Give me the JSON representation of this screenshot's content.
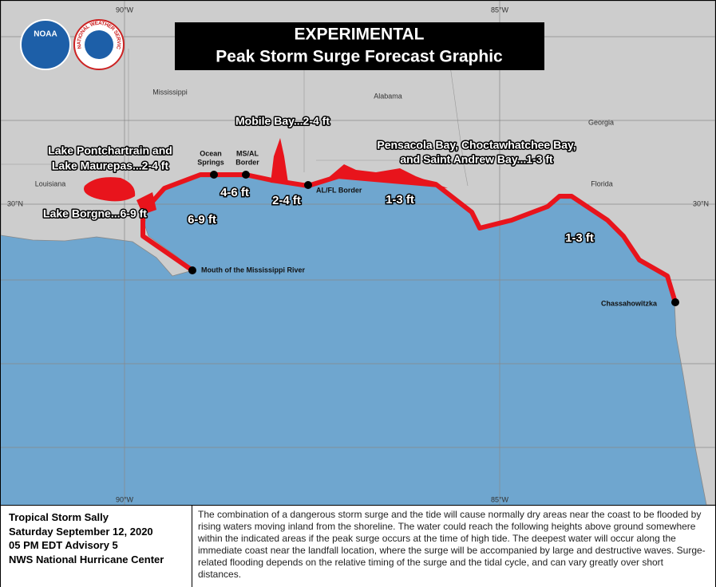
{
  "header": {
    "title": [
      "EXPERIMENTAL",
      "Peak Storm Surge Forecast Graphic"
    ]
  },
  "logos": [
    "NOAA",
    "NATIONAL WEATHER SERVICE"
  ],
  "grid_labels": [
    "90°W",
    "85°W",
    "30°N",
    "30°N",
    "90°W",
    "85°W"
  ],
  "states": [
    "Mississippi",
    "Alabama",
    "Georgia",
    "Louisiana",
    "Florida"
  ],
  "locations": [
    [
      "Ocean",
      "Springs"
    ],
    [
      "MS/AL",
      "Border"
    ],
    [
      "AL/FL Border"
    ],
    [
      "Mouth of the Mississippi River"
    ],
    [
      "Chassahowitzka"
    ]
  ],
  "surge_areas": [
    [
      "Lake Pontchartrain and",
      "Lake Maurepas...2-4 ft"
    ],
    [
      "Mobile Bay...2-4 ft"
    ],
    [
      "Pensacola Bay, Choctawhatchee Bay,",
      "and Saint Andrew Bay...1-3 ft"
    ],
    [
      "Lake Borgne...6-9 ft"
    ]
  ],
  "surge_segments": [
    "6-9 ft",
    "4-6 ft",
    "2-4 ft",
    "1-3 ft",
    "1-3 ft"
  ],
  "footer": {
    "info": [
      "Tropical Storm Sally",
      "Saturday September 12, 2020",
      "05 PM EDT Advisory 5",
      "NWS National Hurricane Center"
    ],
    "description": "The combination of a dangerous storm surge and the tide will cause normally dry areas near the coast to be flooded by rising waters moving inland from the shoreline. The water could reach the following heights above ground somewhere within the indicated areas if the peak surge occurs at the time of high tide.  The deepest water will occur along the immediate coast near the landfall location, where the surge will be accompanied by large and destructive waves.  Surge-related flooding depends on the relative timing of the surge and the tidal cycle, and can vary greatly over short distances."
  }
}
